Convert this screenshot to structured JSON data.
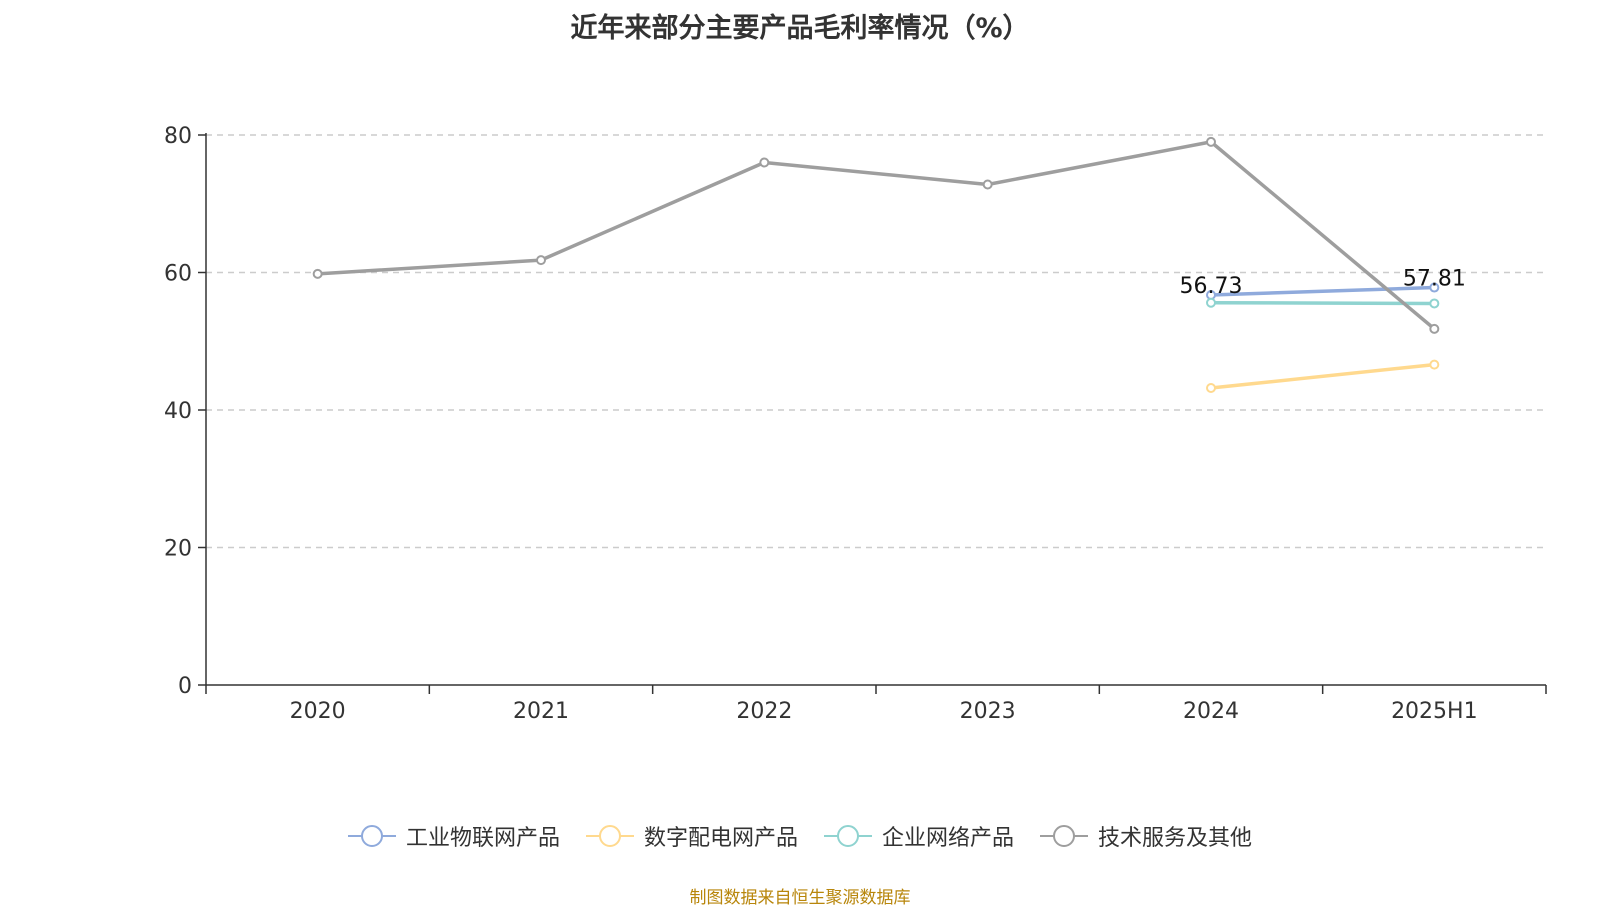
{
  "title": "近年来部分主要产品毛利率情况（%）",
  "footer": "制图数据来自恒生聚源数据库",
  "chart_data": {
    "type": "line",
    "categories": [
      "2020",
      "2021",
      "2022",
      "2023",
      "2024",
      "2025H1"
    ],
    "ylim": [
      0,
      80
    ],
    "yticks": [
      0,
      20,
      40,
      60,
      80
    ],
    "grid": true,
    "legend_position": "bottom",
    "series": [
      {
        "name": "工业物联网产品",
        "color": "#8faadc",
        "values": [
          null,
          null,
          null,
          null,
          56.73,
          57.81
        ],
        "labels": [
          "",
          "",
          "",
          "",
          "56.73",
          "57.81"
        ]
      },
      {
        "name": "数字配电网产品",
        "color": "#ffd98e",
        "values": [
          null,
          null,
          null,
          null,
          43.2,
          46.6
        ],
        "labels": [
          "",
          "",
          "",
          "",
          "",
          ""
        ]
      },
      {
        "name": "企业网络产品",
        "color": "#8fd3d0",
        "values": [
          null,
          null,
          null,
          null,
          55.6,
          55.5
        ],
        "labels": [
          "",
          "",
          "",
          "",
          "",
          ""
        ]
      },
      {
        "name": "技术服务及其他",
        "color": "#9e9e9e",
        "values": [
          59.8,
          61.8,
          76.0,
          72.8,
          79.0,
          51.8
        ],
        "labels": [
          "",
          "",
          "",
          "",
          "",
          ""
        ]
      }
    ]
  }
}
